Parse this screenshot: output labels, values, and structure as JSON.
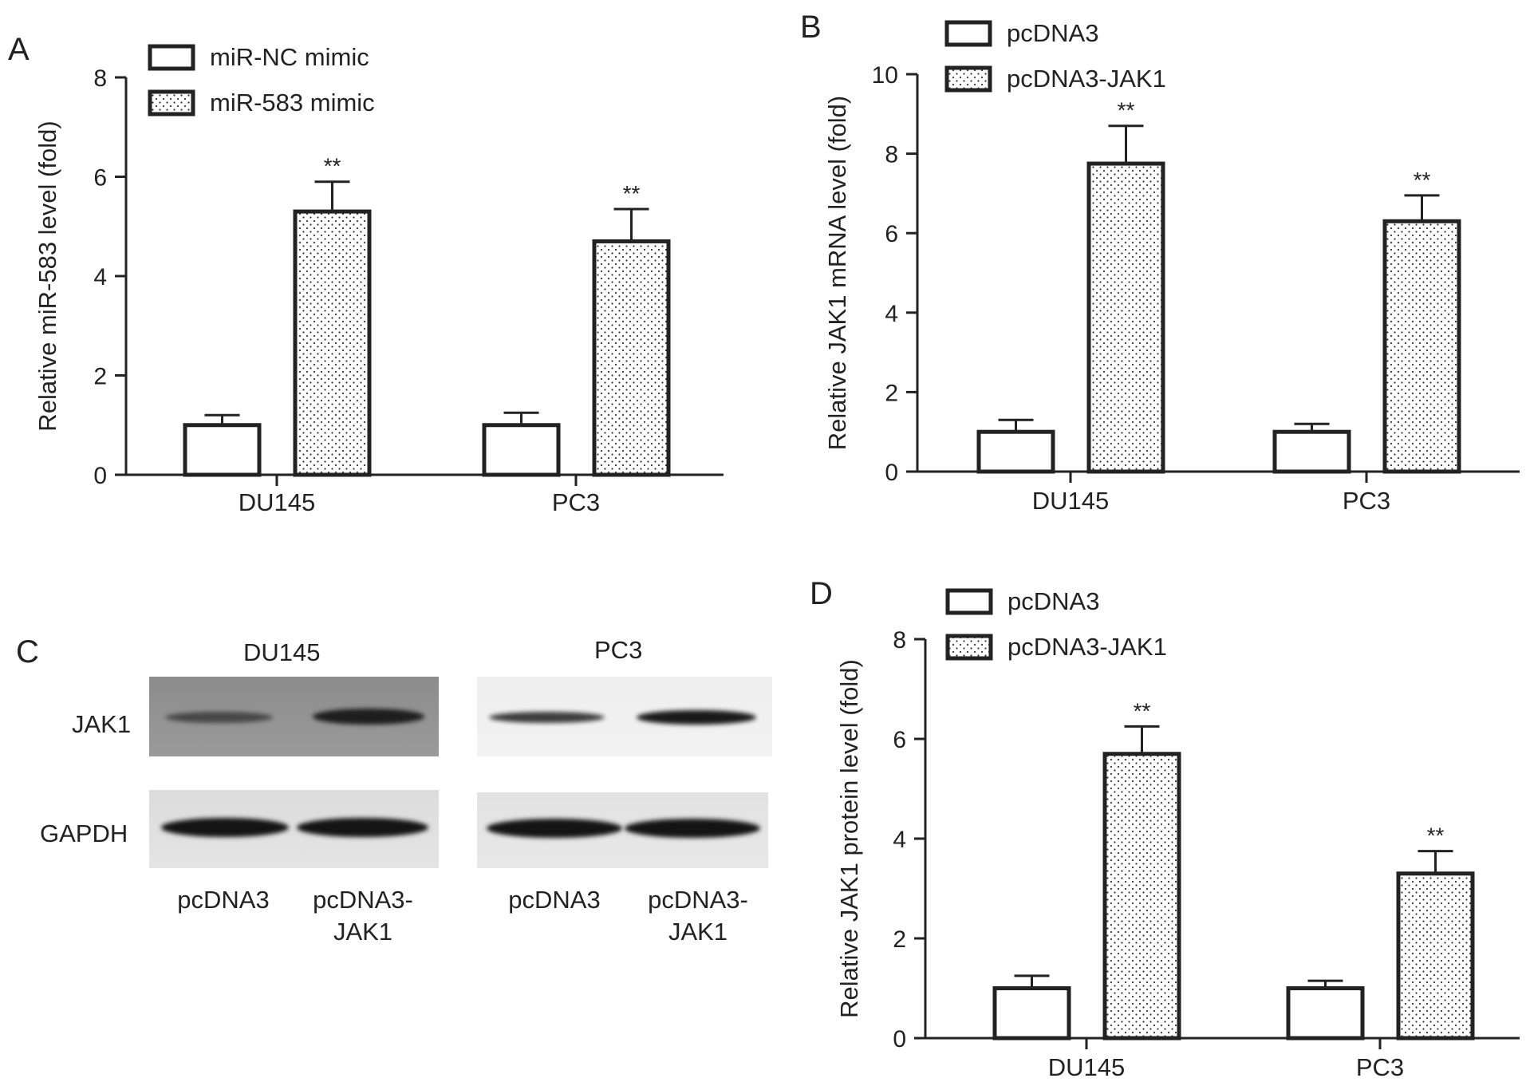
{
  "panels": {
    "A": "A",
    "B": "B",
    "C": "C",
    "D": "D"
  },
  "chart_data": [
    {
      "panel": "A",
      "type": "bar",
      "categories": [
        "DU145",
        "PC3"
      ],
      "ylabel": "Relative miR-583 level (fold)",
      "ylim": [
        0,
        8
      ],
      "yticks": [
        0,
        2,
        4,
        6,
        8
      ],
      "legend_position": "top-left",
      "series": [
        {
          "name": "miR-NC mimic",
          "values": [
            1.0,
            1.0
          ],
          "errors": [
            0.2,
            0.25
          ],
          "fill": "white",
          "annotations": [
            "",
            ""
          ]
        },
        {
          "name": "miR-583 mimic",
          "values": [
            5.3,
            4.7
          ],
          "errors": [
            0.6,
            0.65
          ],
          "fill": "dotted",
          "annotations": [
            "**",
            "**"
          ]
        }
      ]
    },
    {
      "panel": "B",
      "type": "bar",
      "categories": [
        "DU145",
        "PC3"
      ],
      "ylabel": "Relative JAK1 mRNA level (fold)",
      "ylim": [
        0,
        10
      ],
      "yticks": [
        0,
        2,
        4,
        6,
        8,
        10
      ],
      "legend_position": "top-left",
      "series": [
        {
          "name": "pcDNA3",
          "values": [
            1.0,
            1.0
          ],
          "errors": [
            0.3,
            0.2
          ],
          "fill": "white",
          "annotations": [
            "",
            ""
          ]
        },
        {
          "name": "pcDNA3-JAK1",
          "values": [
            7.75,
            6.3
          ],
          "errors": [
            0.95,
            0.65
          ],
          "fill": "dotted",
          "annotations": [
            "**",
            "**"
          ]
        }
      ]
    },
    {
      "panel": "D",
      "type": "bar",
      "categories": [
        "DU145",
        "PC3"
      ],
      "ylabel": "Relative JAK1 protein level (fold)",
      "ylim": [
        0,
        8
      ],
      "yticks": [
        0,
        2,
        4,
        6,
        8
      ],
      "legend_position": "top-left",
      "series": [
        {
          "name": "pcDNA3",
          "values": [
            1.0,
            1.0
          ],
          "errors": [
            0.25,
            0.15
          ],
          "fill": "white",
          "annotations": [
            "",
            ""
          ]
        },
        {
          "name": "pcDNA3-JAK1",
          "values": [
            5.7,
            3.3
          ],
          "errors": [
            0.55,
            0.45
          ],
          "fill": "dotted",
          "annotations": [
            "**",
            "**"
          ]
        }
      ]
    }
  ],
  "western_blot": {
    "panel": "C",
    "groups": [
      "DU145",
      "PC3"
    ],
    "rows": [
      "JAK1",
      "GAPDH"
    ],
    "lanes": [
      {
        "line1": "pcDNA3",
        "line2": ""
      },
      {
        "line1": "pcDNA3-",
        "line2": "JAK1"
      },
      {
        "line1": "pcDNA3",
        "line2": ""
      },
      {
        "line1": "pcDNA3-",
        "line2": "JAK1"
      }
    ]
  }
}
